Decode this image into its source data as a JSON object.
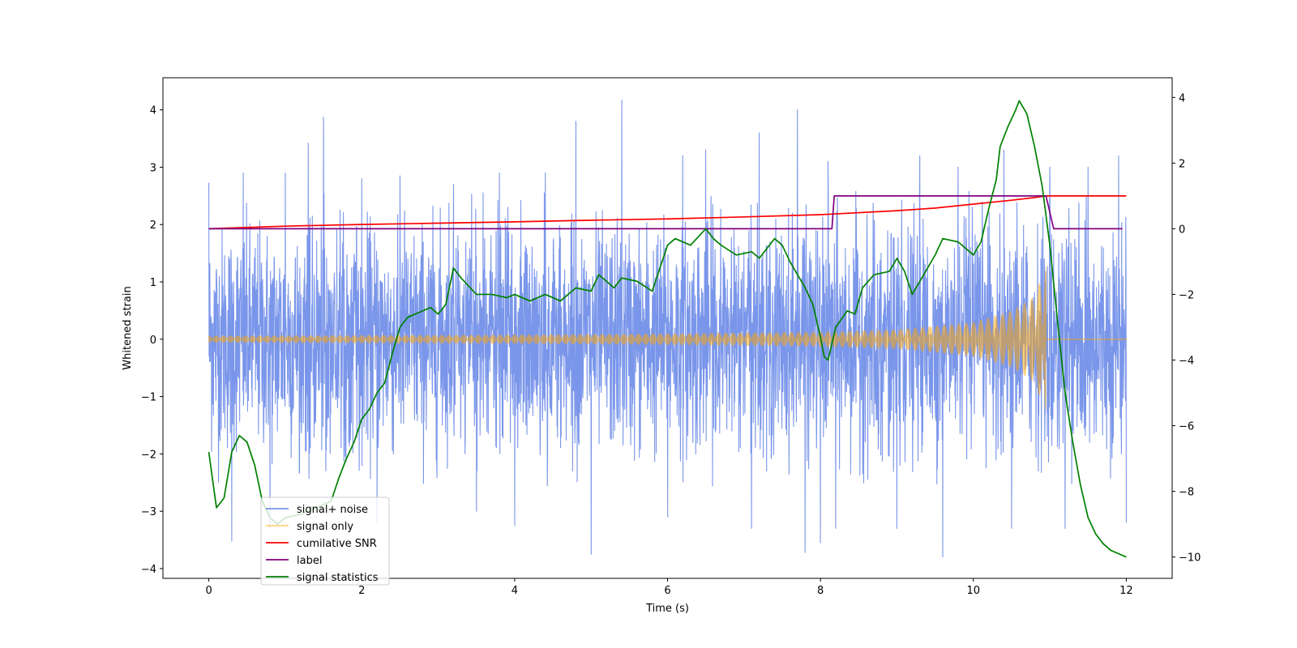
{
  "chart_data": {
    "type": "line",
    "title": "",
    "xlabel": "Time (s)",
    "ylabel": "Whitened strain",
    "xlim": [
      -0.6,
      12.6
    ],
    "ylim": [
      -4.17,
      4.56
    ],
    "y2lim": [
      -10.65,
      4.6
    ],
    "xticks": [
      0,
      2,
      4,
      6,
      8,
      10,
      12
    ],
    "xtick_labels": [
      "0",
      "2",
      "4",
      "6",
      "8",
      "10",
      "12"
    ],
    "yticks": [
      -4,
      -3,
      -2,
      -1,
      0,
      1,
      2,
      3,
      4
    ],
    "ytick_labels": [
      "−4",
      "−3",
      "−2",
      "−1",
      "0",
      "1",
      "2",
      "3",
      "4"
    ],
    "y2ticks": [
      -10,
      -8,
      -6,
      -4,
      -2,
      0,
      2,
      4
    ],
    "y2tick_labels": [
      "−10",
      "−8",
      "−6",
      "−4",
      "−2",
      "0",
      "2",
      "4"
    ],
    "legend_position": "bottom-left",
    "series": [
      {
        "name": "signal+ noise",
        "axis": "left",
        "color": "#4169e1",
        "kind": "noise",
        "t_start": 0,
        "t_end": 12,
        "amplitude": 1.0,
        "peaks": [
          [
            0.0,
            2.73
          ],
          [
            0.3,
            3.52
          ],
          [
            0.45,
            2.9
          ],
          [
            1.0,
            2.9
          ],
          [
            1.3,
            3.42
          ],
          [
            1.5,
            3.87
          ],
          [
            2.0,
            2.8
          ],
          [
            2.5,
            2.85
          ],
          [
            3.2,
            2.7
          ],
          [
            3.8,
            2.9
          ],
          [
            4.4,
            2.9
          ],
          [
            4.8,
            3.8
          ],
          [
            5.4,
            4.17
          ],
          [
            6.2,
            3.2
          ],
          [
            6.5,
            3.3
          ],
          [
            7.2,
            3.6
          ],
          [
            7.7,
            4.0
          ],
          [
            8.1,
            3.1
          ],
          [
            9.3,
            3.2
          ],
          [
            9.8,
            3.0
          ],
          [
            10.4,
            3.3
          ],
          [
            11.0,
            3.0
          ],
          [
            11.5,
            3.0
          ],
          [
            11.9,
            3.2
          ],
          [
            0.3,
            -3.52
          ],
          [
            0.8,
            -3.3
          ],
          [
            2.2,
            -3.2
          ],
          [
            3.5,
            -3.0
          ],
          [
            4.0,
            -3.25
          ],
          [
            5.0,
            -3.75
          ],
          [
            6.0,
            -3.1
          ],
          [
            7.1,
            -3.3
          ],
          [
            7.8,
            -3.72
          ],
          [
            8.0,
            -3.55
          ],
          [
            8.2,
            -3.3
          ],
          [
            9.0,
            -3.3
          ],
          [
            9.6,
            -3.8
          ],
          [
            10.5,
            -3.3
          ],
          [
            11.2,
            -3.3
          ],
          [
            12.0,
            -3.2
          ]
        ]
      },
      {
        "name": "signal only",
        "axis": "left",
        "color": "#ffa500",
        "kind": "chirp",
        "t_start": 0,
        "t_merge": 10.95,
        "t_end": 12,
        "envelope": [
          [
            0.0,
            0.06
          ],
          [
            2.0,
            0.07
          ],
          [
            4.0,
            0.08
          ],
          [
            6.0,
            0.1
          ],
          [
            8.0,
            0.13
          ],
          [
            9.0,
            0.17
          ],
          [
            10.0,
            0.3
          ],
          [
            10.5,
            0.5
          ],
          [
            10.8,
            0.75
          ],
          [
            10.95,
            1.3
          ],
          [
            11.0,
            0.0
          ]
        ]
      },
      {
        "name": "cumilative SNR",
        "axis": "right",
        "color": "#ff0000",
        "points": [
          [
            0.0,
            0.0
          ],
          [
            1.0,
            0.08
          ],
          [
            2.0,
            0.13
          ],
          [
            3.0,
            0.17
          ],
          [
            4.0,
            0.21
          ],
          [
            5.0,
            0.26
          ],
          [
            6.0,
            0.3
          ],
          [
            7.0,
            0.36
          ],
          [
            8.0,
            0.43
          ],
          [
            9.0,
            0.55
          ],
          [
            9.5,
            0.63
          ],
          [
            10.0,
            0.75
          ],
          [
            10.5,
            0.87
          ],
          [
            10.8,
            0.95
          ],
          [
            10.95,
            1.0
          ],
          [
            12.0,
            1.0
          ]
        ]
      },
      {
        "name": "label",
        "axis": "right",
        "color": "#800080",
        "points": [
          [
            0.0,
            0.0
          ],
          [
            8.15,
            0.0
          ],
          [
            8.18,
            1.0
          ],
          [
            10.95,
            1.0
          ],
          [
            11.05,
            0.0
          ],
          [
            11.95,
            0.0
          ]
        ]
      },
      {
        "name": "signal statistics",
        "axis": "right",
        "color": "#008000",
        "points": [
          [
            0.0,
            -6.8
          ],
          [
            0.1,
            -8.5
          ],
          [
            0.2,
            -8.2
          ],
          [
            0.3,
            -6.8
          ],
          [
            0.4,
            -6.3
          ],
          [
            0.5,
            -6.5
          ],
          [
            0.6,
            -7.2
          ],
          [
            0.7,
            -8.3
          ],
          [
            0.8,
            -8.8
          ],
          [
            0.9,
            -9.0
          ],
          [
            1.0,
            -8.8
          ],
          [
            1.2,
            -8.7
          ],
          [
            1.4,
            -8.5
          ],
          [
            1.6,
            -8.3
          ],
          [
            1.7,
            -7.6
          ],
          [
            1.8,
            -7.0
          ],
          [
            1.9,
            -6.5
          ],
          [
            2.0,
            -5.8
          ],
          [
            2.1,
            -5.5
          ],
          [
            2.2,
            -5.0
          ],
          [
            2.3,
            -4.7
          ],
          [
            2.4,
            -3.8
          ],
          [
            2.5,
            -3.0
          ],
          [
            2.6,
            -2.7
          ],
          [
            2.8,
            -2.5
          ],
          [
            2.9,
            -2.4
          ],
          [
            3.0,
            -2.6
          ],
          [
            3.1,
            -2.3
          ],
          [
            3.2,
            -1.2
          ],
          [
            3.3,
            -1.5
          ],
          [
            3.5,
            -2.0
          ],
          [
            3.7,
            -2.0
          ],
          [
            3.9,
            -2.1
          ],
          [
            4.0,
            -2.0
          ],
          [
            4.2,
            -2.2
          ],
          [
            4.4,
            -2.0
          ],
          [
            4.6,
            -2.2
          ],
          [
            4.8,
            -1.8
          ],
          [
            5.0,
            -1.9
          ],
          [
            5.1,
            -1.4
          ],
          [
            5.3,
            -1.8
          ],
          [
            5.4,
            -1.5
          ],
          [
            5.6,
            -1.6
          ],
          [
            5.8,
            -1.9
          ],
          [
            6.0,
            -0.5
          ],
          [
            6.1,
            -0.3
          ],
          [
            6.3,
            -0.5
          ],
          [
            6.5,
            0.0
          ],
          [
            6.6,
            -0.3
          ],
          [
            6.7,
            -0.5
          ],
          [
            6.9,
            -0.8
          ],
          [
            7.1,
            -0.7
          ],
          [
            7.2,
            -0.9
          ],
          [
            7.4,
            -0.3
          ],
          [
            7.5,
            -0.5
          ],
          [
            7.6,
            -1.0
          ],
          [
            7.8,
            -1.8
          ],
          [
            7.9,
            -2.3
          ],
          [
            8.0,
            -3.3
          ],
          [
            8.05,
            -3.9
          ],
          [
            8.1,
            -4.0
          ],
          [
            8.2,
            -3.0
          ],
          [
            8.35,
            -2.5
          ],
          [
            8.45,
            -2.6
          ],
          [
            8.55,
            -1.8
          ],
          [
            8.7,
            -1.4
          ],
          [
            8.9,
            -1.3
          ],
          [
            9.0,
            -0.9
          ],
          [
            9.1,
            -1.3
          ],
          [
            9.2,
            -2.0
          ],
          [
            9.35,
            -1.4
          ],
          [
            9.5,
            -0.8
          ],
          [
            9.6,
            -0.3
          ],
          [
            9.8,
            -0.4
          ],
          [
            10.0,
            -0.8
          ],
          [
            10.1,
            -0.4
          ],
          [
            10.2,
            0.6
          ],
          [
            10.3,
            1.5
          ],
          [
            10.35,
            2.5
          ],
          [
            10.45,
            3.1
          ],
          [
            10.55,
            3.6
          ],
          [
            10.6,
            3.9
          ],
          [
            10.7,
            3.5
          ],
          [
            10.8,
            2.5
          ],
          [
            10.9,
            1.3
          ],
          [
            11.0,
            -0.5
          ],
          [
            11.1,
            -2.8
          ],
          [
            11.2,
            -5.0
          ],
          [
            11.3,
            -6.5
          ],
          [
            11.4,
            -7.8
          ],
          [
            11.5,
            -8.8
          ],
          [
            11.6,
            -9.3
          ],
          [
            11.7,
            -9.6
          ],
          [
            11.8,
            -9.8
          ],
          [
            11.9,
            -9.9
          ],
          [
            12.0,
            -10.0
          ]
        ]
      }
    ]
  }
}
